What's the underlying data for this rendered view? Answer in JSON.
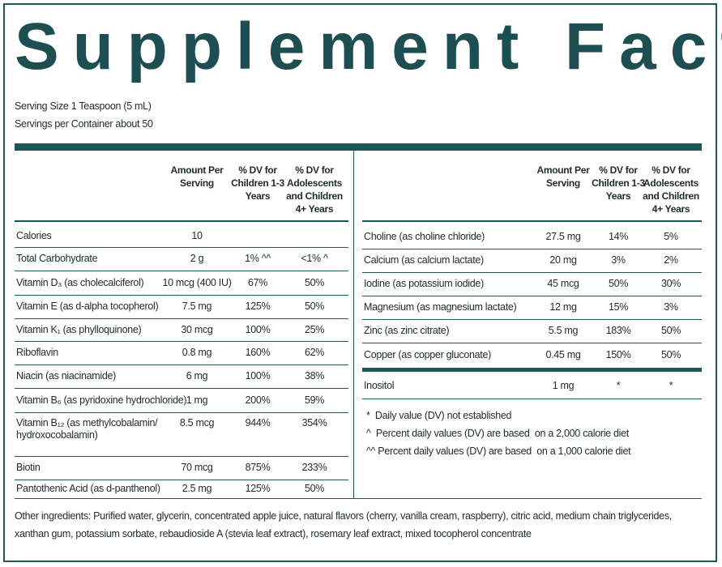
{
  "header": {
    "title": "Supplement Facts",
    "serving_size": "Serving Size 1 Teaspoon (5 mL)",
    "servings_per_container": "Servings per Container about 50"
  },
  "left_table": {
    "headers": [
      "Amount Per Serving",
      "% DV for Children 1-3 Years",
      "% DV for Adolescents and Children 4+ Years"
    ],
    "rows": [
      [
        "Calories",
        "10",
        "",
        ""
      ],
      [
        "Total Carbohydrate",
        "2 g",
        "1% ^^",
        "<1% ^"
      ],
      [
        "Vitamin D₃ (as cholecalciferol)",
        "10 mcg (400 IU)",
        "67%",
        "50%"
      ],
      [
        "Vitamin E (as d-alpha tocopherol)",
        "7.5 mg",
        "125%",
        "50%"
      ],
      [
        "Vitamin K₁ (as phylloquinone)",
        "30 mcg",
        "100%",
        "25%"
      ],
      [
        "Riboflavin",
        "0.8 mg",
        "160%",
        "62%"
      ],
      [
        "Niacin (as niacinamide)",
        "6 mg",
        "100%",
        "38%"
      ],
      [
        "Vitamin B₆ (as pyridoxine hydrochloride)",
        "1 mg",
        "200%",
        "59%"
      ],
      [
        "Vitamin B₁₂ (as methylcobalamin/ hydroxocobalamin)",
        "8.5 mcg",
        "944%",
        "354%"
      ],
      [
        "Biotin",
        "70 mcg",
        "875%",
        "233%"
      ],
      [
        "Pantothenic Acid (as d-panthenol)",
        "2.5 mg",
        "125%",
        "50%"
      ]
    ]
  },
  "right_table": {
    "headers": [
      "Amount Per Serving",
      "% DV for Children 1-3 Years",
      "% DV for Adolescents and Children 4+ Years"
    ],
    "rows": [
      [
        "Choline (as choline chloride)",
        "27.5 mg",
        "14%",
        "5%"
      ],
      [
        "Calcium (as calcium lactate)",
        "20 mg",
        "3%",
        "2%"
      ],
      [
        "Iodine (as potassium iodide)",
        "45 mcg",
        "50%",
        "30%"
      ],
      [
        "Magnesium (as magnesium lactate)",
        "12 mg",
        "15%",
        "3%"
      ],
      [
        "Zinc (as zinc citrate)",
        "5.5 mg",
        "183%",
        "50%"
      ],
      [
        "Copper (as copper gluconate)",
        "0.45 mg",
        "150%",
        "50%"
      ]
    ],
    "extra_rows": [
      [
        "Inositol",
        "1 mg",
        "*",
        "*"
      ]
    ]
  },
  "footnotes": [
    "*  Daily value (DV) not established",
    "^  Percent daily values (DV) are based  on a 2,000 calorie diet",
    "^^ Percent daily values (DV) are based  on a 1,000 calorie diet"
  ],
  "other_ingredients": "Other ingredients: Purified water, glycerin, concentrated apple juice, natural flavors (cherry, vanilla cream, raspberry), citric acid, medium chain triglycerides, xanthan gum, potassium sorbate, rebaudioside A (stevia leaf extract), rosemary leaf extract, mixed tocopherol concentrate"
}
